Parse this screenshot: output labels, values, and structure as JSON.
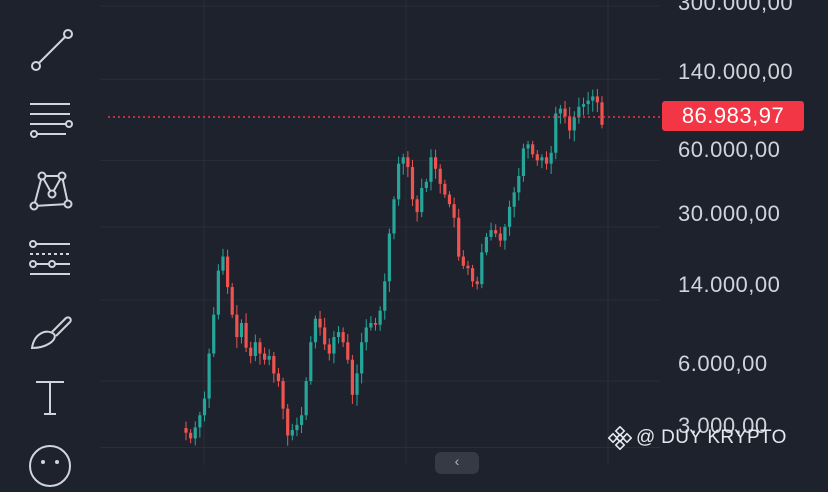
{
  "toolbar": {
    "tools": [
      {
        "icon": "trend-line-icon",
        "label": "Trend line"
      },
      {
        "icon": "fib-retracement-icon",
        "label": "Fib retracement"
      },
      {
        "icon": "xabcd-pattern-icon",
        "label": "Patterns"
      },
      {
        "icon": "long-position-icon",
        "label": "Prediction and measurement"
      },
      {
        "icon": "brush-icon",
        "label": "Brush"
      },
      {
        "icon": "text-icon",
        "label": "Text"
      },
      {
        "icon": "emoji-icon",
        "label": "Icons"
      }
    ]
  },
  "price_axis": {
    "labels": [
      "300.000,00",
      "140.000,00",
      "60.000,00",
      "30.000,00",
      "14.000,00",
      "6.000,00",
      "3.000,00"
    ],
    "current_price": "86.983,97"
  },
  "watermark": {
    "text": "@ DUY KRYPTO"
  },
  "colors": {
    "up": "#26a69a",
    "down": "#ef5350",
    "current_price": "#f23645",
    "background": "#1e222d"
  },
  "chart_data": {
    "type": "candlestick",
    "scale": "log",
    "ylim": [
      2500,
      320000
    ],
    "series": [
      {
        "values": [
          3500,
          3300,
          3700,
          4200,
          5000,
          8000,
          12000,
          19000,
          22000,
          16000,
          12000,
          9500,
          11000,
          8500,
          7800,
          9000,
          8000,
          7500,
          7800,
          6500,
          6000,
          4500,
          3400,
          3600,
          3800,
          4200,
          6000,
          9000,
          11500,
          10500,
          8800,
          8000,
          9500,
          10000,
          9000,
          7500,
          5200,
          6500,
          9000,
          10500,
          11000,
          10800,
          12500,
          17000,
          28000,
          40000,
          58000,
          62000,
          56000,
          40000,
          35000,
          45000,
          48000,
          62000,
          55000,
          47000,
          42000,
          38000,
          33000,
          22000,
          20000,
          19500,
          17000,
          16500,
          23000,
          27000,
          29000,
          28000,
          26000,
          30000,
          37000,
          43000,
          51000,
          68000,
          71000,
          64000,
          60000,
          62000,
          58000,
          65000,
          98000,
          103000,
          95000,
          82000,
          94000,
          105000,
          108000,
          112000,
          117000,
          110000,
          87000
        ]
      }
    ]
  }
}
